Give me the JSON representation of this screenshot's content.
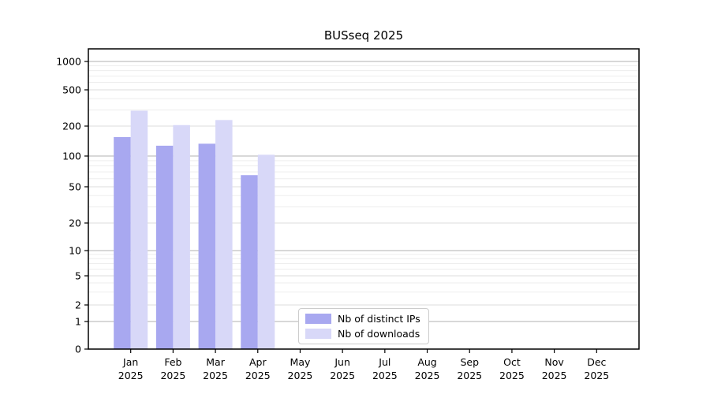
{
  "chart_data": {
    "type": "bar",
    "title": "BUSseq 2025",
    "year": "2025",
    "categories": [
      "Jan",
      "Feb",
      "Mar",
      "Apr",
      "May",
      "Jun",
      "Jul",
      "Aug",
      "Sep",
      "Oct",
      "Nov",
      "Dec"
    ],
    "series": [
      {
        "name": "Nb of distinct IPs",
        "color": "#a8a8f0",
        "values": [
          155,
          127,
          133,
          65,
          null,
          null,
          null,
          null,
          null,
          null,
          null,
          null
        ]
      },
      {
        "name": "Nb of downloads",
        "color": "#d8d8f8",
        "values": [
          295,
          205,
          233,
          103,
          null,
          null,
          null,
          null,
          null,
          null,
          null,
          null
        ]
      }
    ],
    "xlabel": "",
    "ylabel": "",
    "y_scale": "symlog",
    "y_ticks": [
      0,
      1,
      2,
      5,
      10,
      20,
      50,
      100,
      200,
      500,
      1000
    ],
    "ylim": [
      0,
      1000
    ],
    "grid": true,
    "legend_position": "lower-center",
    "colors": {
      "major_gridline": "#b0b0b0",
      "mid_gridline": "#dcdcdc",
      "minor_gridline": "#ededed",
      "axis": "#000000",
      "background": "#ffffff"
    }
  }
}
